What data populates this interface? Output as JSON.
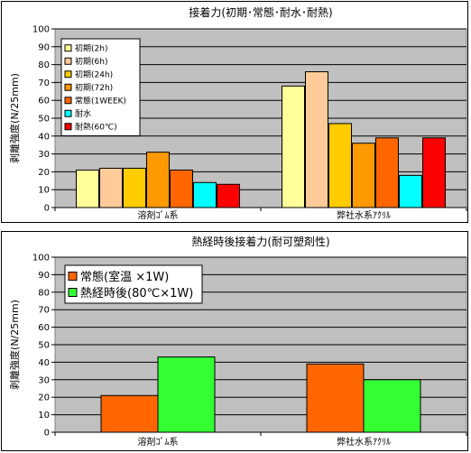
{
  "chart_data": [
    {
      "type": "bar",
      "title": "接着力(初期･常態･耐水･耐熱)",
      "xlabel": "",
      "ylabel": "剥離強度(N/25mm)",
      "categories": [
        "溶剤ｺﾞﾑ系",
        "弊社水系ｱｸﾘﾙ"
      ],
      "ylim": [
        0,
        100
      ],
      "yticks": [
        "0",
        "10",
        "20",
        "30",
        "40",
        "50",
        "60",
        "70",
        "80",
        "90",
        "100"
      ],
      "grid": true,
      "legend_position": "top-left",
      "series": [
        {
          "name": "初期(2h)",
          "color": "#ffff99",
          "values": [
            21,
            68
          ]
        },
        {
          "name": "初期(6h)",
          "color": "#ffcc99",
          "values": [
            22,
            76
          ]
        },
        {
          "name": "初期(24h)",
          "color": "#ffcc00",
          "values": [
            22,
            47
          ]
        },
        {
          "name": "初期(72h)",
          "color": "#ff9900",
          "values": [
            31,
            36
          ]
        },
        {
          "name": "常態(1WEEK)",
          "color": "#ff6600",
          "values": [
            21,
            39
          ]
        },
        {
          "name": "耐水",
          "color": "#00ffff",
          "values": [
            14,
            18
          ]
        },
        {
          "name": "耐熱(60℃)",
          "color": "#ff0000",
          "values": [
            13,
            39
          ]
        }
      ]
    },
    {
      "type": "bar",
      "title": "熱経時後接着力(耐可塑剤性)",
      "xlabel": "",
      "ylabel": "剥離強度(N/25mm)",
      "categories": [
        "溶剤ｺﾞﾑ系",
        "弊社水系ｱｸﾘﾙ"
      ],
      "ylim": [
        0,
        100
      ],
      "yticks": [
        "0",
        "10",
        "20",
        "30",
        "40",
        "50",
        "60",
        "70",
        "80",
        "90",
        "100"
      ],
      "grid": true,
      "legend_position": "top-left",
      "series": [
        {
          "name": "常態(室温 ×1W)",
          "color": "#ff6600",
          "values": [
            21,
            39
          ]
        },
        {
          "name": "熱経時後(80℃×1W)",
          "color": "#33ff33",
          "values": [
            43,
            30
          ]
        }
      ]
    }
  ],
  "colors": {
    "plot_area": "#c0c0c0",
    "gridline": "#000000"
  }
}
